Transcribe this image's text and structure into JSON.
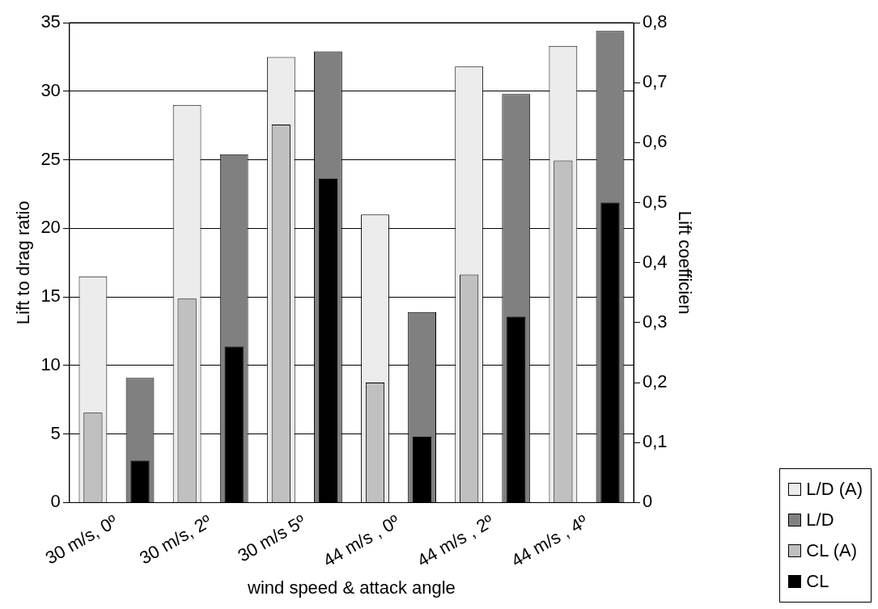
{
  "chart_data": {
    "type": "bar",
    "xlabel": "wind speed & attack angle",
    "ylabel": "Lift to drag ratio",
    "y2label": "Lift coefficien",
    "categories": [
      "30 m/s, 0º",
      "30 m/s, 2º",
      "30 m/s 5º",
      "44 m/s , 0º",
      "44 m/s , 2º",
      "44 m/s , 4º"
    ],
    "series": [
      {
        "name": "L/D (A)",
        "color": "#ececec",
        "values": [
          16.5,
          29,
          32.5,
          21,
          31.8,
          33.3
        ]
      },
      {
        "name": "L/D",
        "color": "#808080",
        "values": [
          9.1,
          25.4,
          32.9,
          13.9,
          29.8,
          34.4
        ]
      },
      {
        "name": "CL (A)",
        "color": "#c0c0c0",
        "axis": "y2",
        "values": [
          0.15,
          0.34,
          0.63,
          0.2,
          0.38,
          0.57
        ]
      },
      {
        "name": "CL",
        "color": "#000000",
        "axis": "y2",
        "values": [
          0.07,
          0.26,
          0.54,
          0.11,
          0.31,
          0.5
        ]
      }
    ],
    "ylim": [
      0,
      35
    ],
    "yticks": [
      0,
      5,
      10,
      15,
      20,
      25,
      30,
      35
    ],
    "y2lim": [
      0,
      0.8
    ],
    "y2ticks": [
      0,
      {
        "value": 0.1,
        "label": "0,1"
      },
      {
        "value": 0.2,
        "label": "0,2"
      },
      {
        "value": 0.3,
        "label": "0,3"
      },
      {
        "value": 0.4,
        "label": "0,4"
      },
      {
        "value": 0.5,
        "label": "0,5"
      },
      {
        "value": 0.6,
        "label": "0,6"
      },
      {
        "value": 0.7,
        "label": "0,7"
      },
      {
        "value": 0.8,
        "label": "0,8"
      }
    ],
    "grid": "y",
    "legend": "bottom right"
  }
}
